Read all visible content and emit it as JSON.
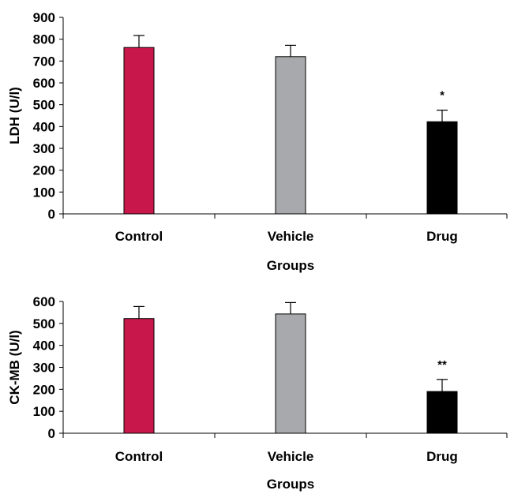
{
  "chart_data": [
    {
      "type": "bar",
      "categories": [
        "Control",
        "Vehicle",
        "Drug"
      ],
      "values": [
        762,
        720,
        422
      ],
      "errors": [
        55,
        52,
        53
      ],
      "colors": [
        "#c8174a",
        "#a7a9ac",
        "#000000"
      ],
      "annotations": [
        "",
        "",
        "*"
      ],
      "xlabel": "Groups",
      "ylabel": "LDH (U/l)",
      "ylim": [
        0,
        900
      ],
      "yticks": [
        0,
        100,
        200,
        300,
        400,
        500,
        600,
        700,
        800,
        900
      ],
      "grid": false
    },
    {
      "type": "bar",
      "categories": [
        "Control",
        "Vehicle",
        "Drug"
      ],
      "values": [
        522,
        543,
        190
      ],
      "errors": [
        55,
        52,
        55
      ],
      "colors": [
        "#c8174a",
        "#a7a9ac",
        "#000000"
      ],
      "annotations": [
        "",
        "",
        "**"
      ],
      "xlabel": "Groups",
      "ylabel": "CK-MB (U/l)",
      "ylim": [
        0,
        600
      ],
      "yticks": [
        0,
        100,
        200,
        300,
        400,
        500,
        600
      ],
      "grid": false
    }
  ]
}
